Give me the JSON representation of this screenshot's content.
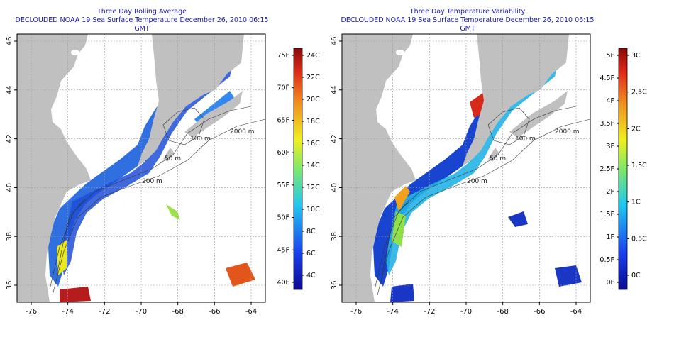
{
  "panels": [
    {
      "title": "Three Day Rolling Average",
      "subtitle": "DECLOUDED NOAA 19 Sea Surface Temperature December 26, 2010 06:15 GMT",
      "x_ticks": [
        "-76",
        "-74",
        "-72",
        "-70",
        "-68",
        "-66",
        "-64"
      ],
      "y_ticks": [
        "36",
        "38",
        "40",
        "42",
        "44",
        "46"
      ],
      "contours": [
        "100 m",
        "2000 m",
        "200 m",
        "50 m"
      ],
      "colorbar": {
        "left_labels": [
          "40F",
          "45F",
          "50F",
          "55F",
          "60F",
          "65F",
          "70F",
          "75F"
        ],
        "right_labels": [
          "4C",
          "6C",
          "8C",
          "10C",
          "12C",
          "14C",
          "16C",
          "18C",
          "20C",
          "22C",
          "24C"
        ]
      }
    },
    {
      "title": "Three Day Temperature Variability",
      "subtitle": "DECLOUDED NOAA 19 Sea Surface Temperature December 26, 2010 06:15 GMT",
      "x_ticks": [
        "-76",
        "-74",
        "-72",
        "-70",
        "-68",
        "-66",
        "-64"
      ],
      "y_ticks": [
        "36",
        "38",
        "40",
        "42",
        "44",
        "46"
      ],
      "contours": [
        "100 m",
        "2000 m",
        "200 m",
        "50 m"
      ],
      "colorbar": {
        "left_labels": [
          "0F",
          "0.5F",
          "1F",
          "1.5F",
          "2F",
          "2.5F",
          "3F",
          "3.5F",
          "4F",
          "4.5F",
          "5F"
        ],
        "right_labels": [
          "0C",
          "0.5C",
          "1C",
          "1.5C",
          "2C",
          "2.5C",
          "3C"
        ]
      }
    }
  ],
  "colors": {
    "land": "#c0c0c0",
    "ocean": "#ffffff",
    "title": "#1a1aa8",
    "grid": "#9a9a9a",
    "contour": "#333333"
  }
}
